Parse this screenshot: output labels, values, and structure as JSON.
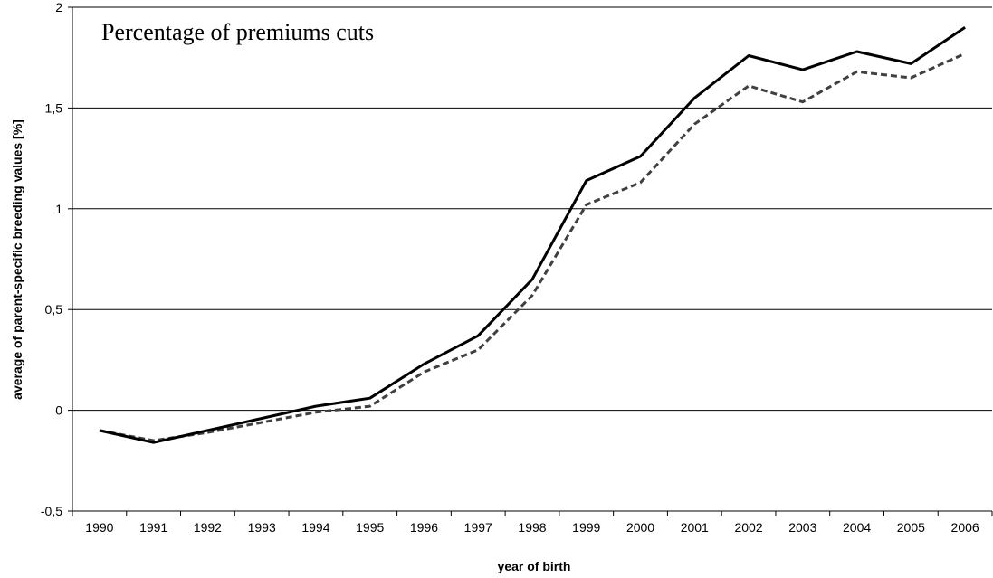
{
  "chart_data": {
    "type": "line",
    "title": "Percentage of premiums cuts",
    "xlabel": "year of birth",
    "ylabel": "average of parent-specific breeding values [%]",
    "categories": [
      "1990",
      "1991",
      "1992",
      "1993",
      "1994",
      "1995",
      "1996",
      "1997",
      "1998",
      "1999",
      "2000",
      "2001",
      "2002",
      "2003",
      "2004",
      "2005",
      "2006"
    ],
    "ylim": [
      -0.5,
      2
    ],
    "yticks": [
      -0.5,
      0,
      0.5,
      1,
      1.5,
      2
    ],
    "ytick_labels": [
      "-0,5",
      "0",
      "0,5",
      "1",
      "1,5",
      "2"
    ],
    "grid": true,
    "series": [
      {
        "style": "solid",
        "color": "#000000",
        "values": [
          -0.1,
          -0.16,
          -0.1,
          -0.04,
          0.02,
          0.06,
          0.23,
          0.37,
          0.65,
          1.14,
          1.26,
          1.55,
          1.76,
          1.69,
          1.78,
          1.72,
          1.9
        ]
      },
      {
        "style": "dashed",
        "color": "#404040",
        "values": [
          -0.1,
          -0.15,
          -0.11,
          -0.06,
          -0.01,
          0.02,
          0.19,
          0.3,
          0.57,
          1.02,
          1.13,
          1.42,
          1.61,
          1.53,
          1.68,
          1.65,
          1.77
        ]
      }
    ]
  }
}
